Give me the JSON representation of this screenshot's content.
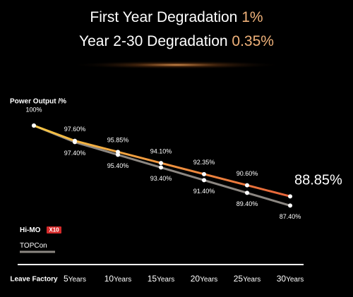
{
  "chart_data": {
    "type": "line",
    "title_lines": [
      {
        "text": "First Year Degradation",
        "highlight": "1%"
      },
      {
        "text": "Year 2-30 Degradation",
        "highlight": "0.35%"
      }
    ],
    "y_axis_label": "Power Output /%",
    "categories": [
      "Leave Factory",
      "5",
      "10",
      "15",
      "20",
      "25",
      "30"
    ],
    "category_suffix": "Years",
    "ylim": [
      84,
      100
    ],
    "series": [
      {
        "name": "Hi-MO",
        "badge": "X10",
        "color": "#f6c644",
        "color_end": "#e8643a",
        "values": [
          100,
          97.6,
          95.85,
          94.1,
          92.35,
          90.6,
          88.85
        ],
        "value_labels": [
          "100%",
          "97.60%",
          "95.85%",
          "94.10%",
          "92.35%",
          "90.60%",
          "88.85%"
        ]
      },
      {
        "name": "TOPCon",
        "color": "#8c8782",
        "values": [
          100,
          97.4,
          95.4,
          93.4,
          91.4,
          89.4,
          87.4
        ],
        "value_labels": [
          null,
          "97.40%",
          "95.40%",
          "93.40%",
          "91.40%",
          "89.40%",
          "87.40%"
        ]
      }
    ]
  }
}
